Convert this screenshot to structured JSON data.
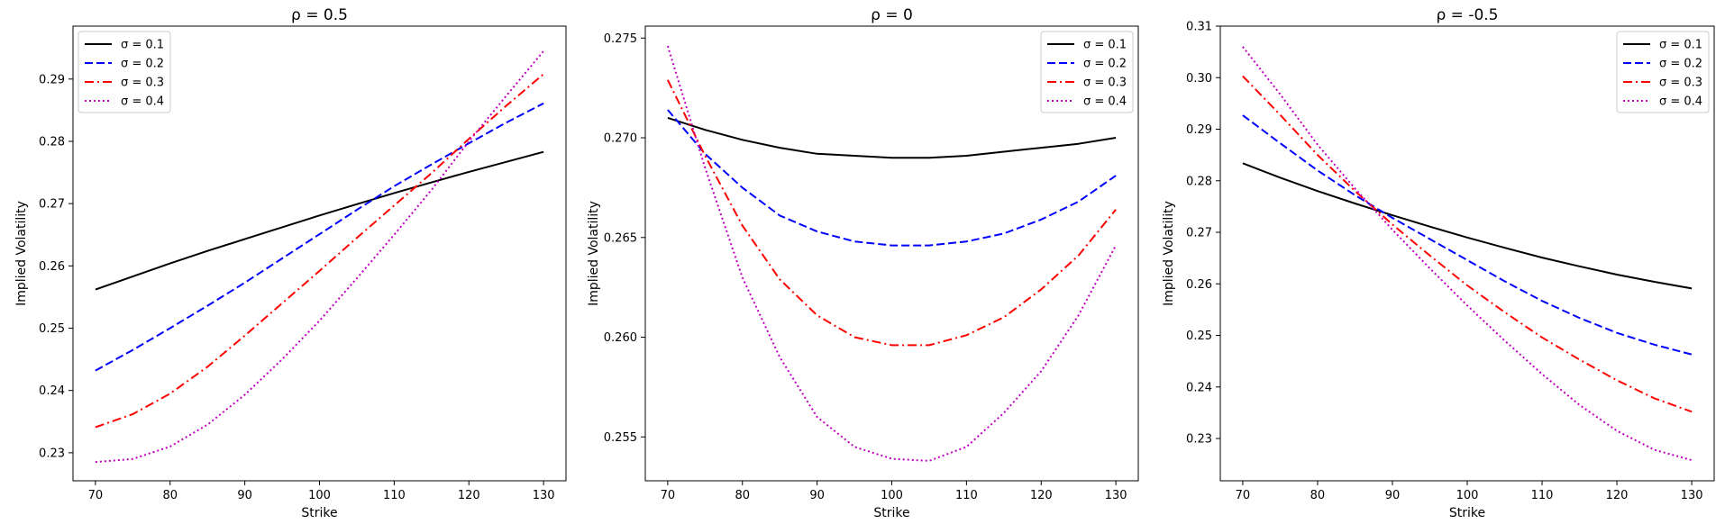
{
  "chart_data": [
    {
      "type": "line",
      "title": "ρ = 0.5",
      "xlabel": "Strike",
      "ylabel": "Implied Volatility",
      "xlim": [
        67,
        133
      ],
      "ylim": [
        0.2255,
        0.2985
      ],
      "xticks": [
        70,
        80,
        90,
        100,
        110,
        120,
        130
      ],
      "xtick_labels": [
        "70",
        "80",
        "90",
        "100",
        "110",
        "120",
        "130"
      ],
      "yticks": [
        0.23,
        0.24,
        0.25,
        0.26,
        0.27,
        0.28,
        0.29
      ],
      "ytick_labels": [
        "0.23",
        "0.24",
        "0.25",
        "0.26",
        "0.27",
        "0.28",
        "0.29"
      ],
      "legend_position": "top-left",
      "x": [
        70,
        75,
        80,
        85,
        90,
        95,
        100,
        105,
        110,
        115,
        120,
        125,
        130
      ],
      "series": [
        {
          "name": "σ = 0.1",
          "color": "#000000",
          "style": "solid",
          "values": [
            0.2562,
            0.2583,
            0.2604,
            0.2624,
            0.2643,
            0.2662,
            0.2681,
            0.2699,
            0.2717,
            0.2734,
            0.2751,
            0.2767,
            0.2783
          ]
        },
        {
          "name": "σ = 0.2",
          "color": "#0000ff",
          "style": "dashed",
          "values": [
            0.2432,
            0.2465,
            0.25,
            0.2536,
            0.2573,
            0.2612,
            0.2651,
            0.269,
            0.2728,
            0.2763,
            0.2797,
            0.283,
            0.2861
          ]
        },
        {
          "name": "σ = 0.3",
          "color": "#ff0000",
          "style": "dashdot",
          "values": [
            0.2341,
            0.2362,
            0.2395,
            0.2438,
            0.2488,
            0.254,
            0.2592,
            0.2645,
            0.2697,
            0.2749,
            0.2804,
            0.2857,
            0.2908
          ]
        },
        {
          "name": "σ = 0.4",
          "color": "#bf00bf",
          "style": "dotted",
          "values": [
            0.2285,
            0.229,
            0.231,
            0.2345,
            0.2393,
            0.245,
            0.2512,
            0.258,
            0.265,
            0.2722,
            0.28,
            0.2873,
            0.2945
          ]
        }
      ]
    },
    {
      "type": "line",
      "title": "ρ = 0",
      "xlabel": "Strike",
      "ylabel": "Implied Volatility",
      "xlim": [
        67,
        133
      ],
      "ylim": [
        0.2528,
        0.2756
      ],
      "xticks": [
        70,
        80,
        90,
        100,
        110,
        120,
        130
      ],
      "xtick_labels": [
        "70",
        "80",
        "90",
        "100",
        "110",
        "120",
        "130"
      ],
      "yticks": [
        0.255,
        0.26,
        0.265,
        0.27,
        0.275
      ],
      "ytick_labels": [
        "0.255",
        "0.260",
        "0.265",
        "0.270",
        "0.275"
      ],
      "legend_position": "top-right",
      "x": [
        70,
        75,
        80,
        85,
        90,
        95,
        100,
        105,
        110,
        115,
        120,
        125,
        130
      ],
      "series": [
        {
          "name": "σ = 0.1",
          "color": "#000000",
          "style": "solid",
          "values": [
            0.271,
            0.2704,
            0.2699,
            0.2695,
            0.2692,
            0.2691,
            0.269,
            0.269,
            0.2691,
            0.2693,
            0.2695,
            0.2697,
            0.27
          ]
        },
        {
          "name": "σ = 0.2",
          "color": "#0000ff",
          "style": "dashed",
          "values": [
            0.2714,
            0.2692,
            0.2675,
            0.2661,
            0.2653,
            0.2648,
            0.2646,
            0.2646,
            0.2648,
            0.2652,
            0.2659,
            0.2668,
            0.2681
          ]
        },
        {
          "name": "σ = 0.3",
          "color": "#ff0000",
          "style": "dashdot",
          "values": [
            0.2729,
            0.2691,
            0.2656,
            0.2629,
            0.2611,
            0.26,
            0.2596,
            0.2596,
            0.2601,
            0.261,
            0.2624,
            0.2641,
            0.2664
          ]
        },
        {
          "name": "σ = 0.4",
          "color": "#bf00bf",
          "style": "dotted",
          "values": [
            0.2746,
            0.2685,
            0.263,
            0.259,
            0.256,
            0.2545,
            0.2539,
            0.2538,
            0.2545,
            0.2562,
            0.2583,
            0.2611,
            0.2646
          ]
        }
      ]
    },
    {
      "type": "line",
      "title": "ρ = -0.5",
      "xlabel": "Strike",
      "ylabel": "Implied Volatility",
      "xlim": [
        67,
        133
      ],
      "ylim": [
        0.2218,
        0.31
      ],
      "xticks": [
        70,
        80,
        90,
        100,
        110,
        120,
        130
      ],
      "xtick_labels": [
        "70",
        "80",
        "90",
        "100",
        "110",
        "120",
        "130"
      ],
      "yticks": [
        0.23,
        0.24,
        0.25,
        0.26,
        0.27,
        0.28,
        0.29,
        0.3,
        0.31
      ],
      "ytick_labels": [
        "0.23",
        "0.24",
        "0.25",
        "0.26",
        "0.27",
        "0.28",
        "0.29",
        "0.30",
        "0.31"
      ],
      "legend_position": "top-right",
      "x": [
        70,
        75,
        80,
        85,
        90,
        95,
        100,
        105,
        110,
        115,
        120,
        125,
        130
      ],
      "series": [
        {
          "name": "σ = 0.1",
          "color": "#000000",
          "style": "solid",
          "values": [
            0.2834,
            0.2806,
            0.278,
            0.2756,
            0.2733,
            0.2711,
            0.269,
            0.267,
            0.2651,
            0.2634,
            0.2618,
            0.2604,
            0.2591
          ]
        },
        {
          "name": "σ = 0.2",
          "color": "#0000ff",
          "style": "dashed",
          "values": [
            0.2927,
            0.2873,
            0.282,
            0.2772,
            0.2728,
            0.2687,
            0.2646,
            0.2605,
            0.2567,
            0.2534,
            0.2505,
            0.2482,
            0.2463
          ]
        },
        {
          "name": "σ = 0.3",
          "color": "#ff0000",
          "style": "dashdot",
          "values": [
            0.3003,
            0.2928,
            0.285,
            0.278,
            0.2715,
            0.2655,
            0.2597,
            0.2545,
            0.2496,
            0.2453,
            0.2413,
            0.2378,
            0.2352
          ]
        },
        {
          "name": "σ = 0.4",
          "color": "#bf00bf",
          "style": "dotted",
          "values": [
            0.306,
            0.2968,
            0.287,
            0.2785,
            0.2705,
            0.263,
            0.2558,
            0.249,
            0.2425,
            0.2365,
            0.2315,
            0.2278,
            0.2258
          ]
        }
      ]
    }
  ]
}
